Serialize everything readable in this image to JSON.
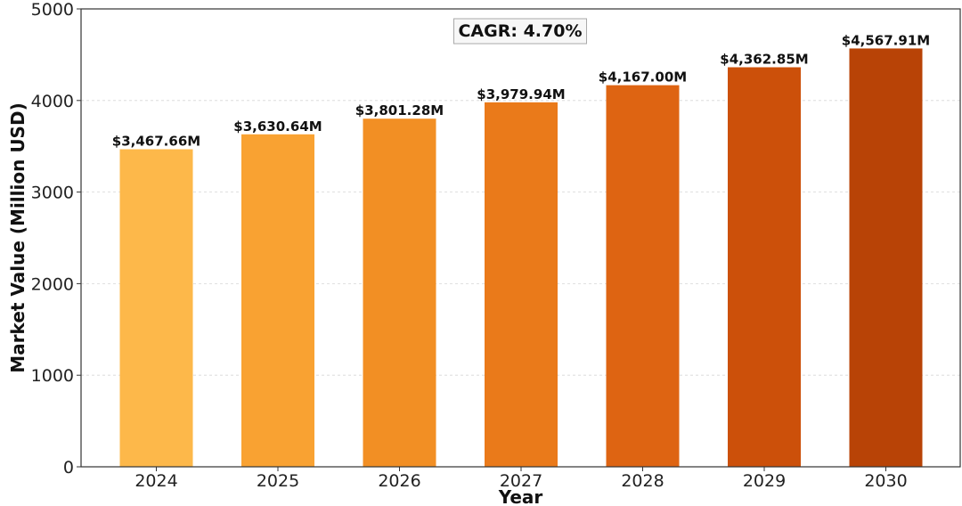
{
  "chart_data": {
    "type": "bar",
    "categories": [
      "2024",
      "2025",
      "2026",
      "2027",
      "2028",
      "2029",
      "2030"
    ],
    "values": [
      3467.66,
      3630.64,
      3801.28,
      3979.94,
      4167.0,
      4362.85,
      4567.91
    ],
    "data_labels": [
      "$3,467.66M",
      "$3,630.64M",
      "$3,801.28M",
      "$3,979.94M",
      "$4,167.00M",
      "$4,362.85M",
      "$4,567.91M"
    ],
    "colors": [
      "#FDB84A",
      "#F9A232",
      "#F28F24",
      "#EA7A1A",
      "#DE6412",
      "#CC500A",
      "#B84306"
    ],
    "title": "",
    "xlabel": "Year",
    "ylabel": "Market Value (Million USD)",
    "ylim": [
      0,
      5000
    ],
    "yticks": [
      0,
      1000,
      2000,
      3000,
      4000,
      5000
    ],
    "grid": "horizontal dashed",
    "legend": "none",
    "annotation": "CAGR: 4.70%"
  }
}
